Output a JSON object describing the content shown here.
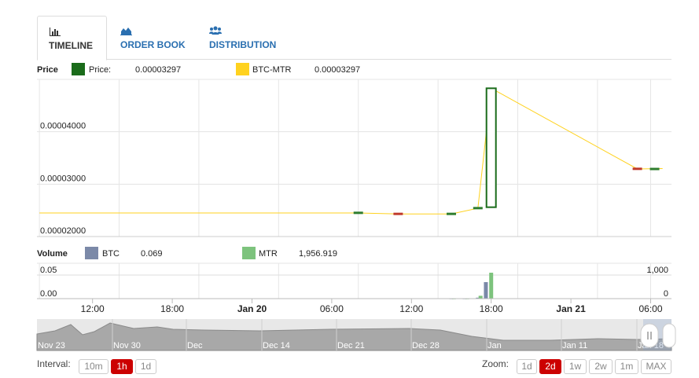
{
  "tabs": [
    {
      "label": "TIMELINE",
      "icon": "bar-chart-icon",
      "active": true
    },
    {
      "label": "ORDER BOOK",
      "icon": "area-chart-icon",
      "active": false
    },
    {
      "label": "DISTRIBUTION",
      "icon": "users-icon",
      "active": false
    }
  ],
  "price_legend": {
    "title": "Price",
    "price_label": "Price:",
    "price_value": "0.00003297",
    "pair_label": "BTC-MTR",
    "pair_value": "0.00003297",
    "price_color": "#1a6b1a",
    "pair_color": "#ffd21f"
  },
  "volume_legend": {
    "title": "Volume",
    "btc_label": "BTC",
    "btc_value": "0.069",
    "mtr_label": "MTR",
    "mtr_value": "1,956.919",
    "btc_color": "#7b89a8",
    "mtr_color": "#7dc37d"
  },
  "navigator_labels": [
    "Nov 23",
    "Nov 30",
    "Dec",
    "Dec 14",
    "Dec 21",
    "Dec 28",
    "Jan",
    "Jan 11",
    "Jan 18"
  ],
  "interval": {
    "label": "Interval:",
    "options": [
      "10m",
      "1h",
      "1d"
    ],
    "active": "1h"
  },
  "zoom": {
    "label": "Zoom:",
    "options": [
      "1d",
      "2d",
      "1w",
      "2w",
      "1m",
      "MAX"
    ],
    "active": "2d"
  },
  "chart_data": [
    {
      "type": "candlestick",
      "title": "Price",
      "ylim": [
        2e-05,
        5e-05
      ],
      "yticks": [
        "0.00002000",
        "0.00003000",
        "0.00004000"
      ],
      "ytick_values": [
        2e-05,
        3e-05,
        4e-05
      ],
      "x_hours": [
        -16,
        -10,
        -4,
        2,
        8,
        14,
        20,
        26,
        30
      ],
      "x_ticks": [
        "12:00",
        "18:00",
        "Jan 20",
        "06:00",
        "12:00",
        "18:00",
        "Jan 21",
        "06:00"
      ],
      "x_tick_hours": [
        -12,
        -6,
        0,
        6,
        12,
        18,
        24,
        30
      ],
      "line": [
        {
          "h": -16,
          "v": 2.45e-05
        },
        {
          "h": 8,
          "v": 2.45e-05
        },
        {
          "h": 11,
          "v": 2.43e-05
        },
        {
          "h": 15,
          "v": 2.43e-05
        },
        {
          "h": 17,
          "v": 2.54e-05
        },
        {
          "h": 18,
          "v": 4.83e-05
        },
        {
          "h": 29,
          "v": 3.29e-05
        },
        {
          "h": 30.9,
          "v": 3.297e-05
        }
      ],
      "candles": [
        {
          "h": 8,
          "open": 2.45e-05,
          "close": 2.46e-05,
          "color": "#2e7d2e"
        },
        {
          "h": 11,
          "open": 2.44e-05,
          "close": 2.43e-05,
          "color": "#c0392b"
        },
        {
          "h": 15,
          "open": 2.43e-05,
          "close": 2.44e-05,
          "color": "#2e7d2e"
        },
        {
          "h": 17,
          "open": 2.53e-05,
          "close": 2.55e-05,
          "color": "#2e7d2e"
        },
        {
          "h": 18,
          "open": 2.56e-05,
          "close": 4.83e-05,
          "color": "#1a6b1a"
        },
        {
          "h": 29,
          "open": 3.3e-05,
          "close": 3.29e-05,
          "color": "#c0392b"
        },
        {
          "h": 30.3,
          "open": 3.29e-05,
          "close": 3.297e-05,
          "color": "#2e7d2e"
        }
      ]
    },
    {
      "type": "bar",
      "title": "Volume",
      "left_axis": {
        "ticks": [
          "0.00",
          "0.05"
        ],
        "values": [
          0,
          0.05
        ],
        "ylim": [
          0,
          0.075
        ]
      },
      "right_axis": {
        "ticks": [
          "0",
          "1,000"
        ],
        "values": [
          0,
          1000
        ],
        "ylim": [
          0,
          1500
        ]
      },
      "series": [
        {
          "name": "BTC",
          "axis": "left",
          "color": "#7b89a8",
          "points": [
            {
              "h": 15,
              "v": 0.0006
            },
            {
              "h": 16,
              "v": 0.0006
            },
            {
              "h": 17,
              "v": 0.002
            },
            {
              "h": 17.6,
              "v": 0.035
            }
          ]
        },
        {
          "name": "MTR",
          "axis": "right",
          "color": "#7dc37d",
          "points": [
            {
              "h": 15.2,
              "v": 10
            },
            {
              "h": 16.2,
              "v": 10
            },
            {
              "h": 17.2,
              "v": 120
            },
            {
              "h": 18,
              "v": 1100
            }
          ]
        }
      ]
    }
  ]
}
